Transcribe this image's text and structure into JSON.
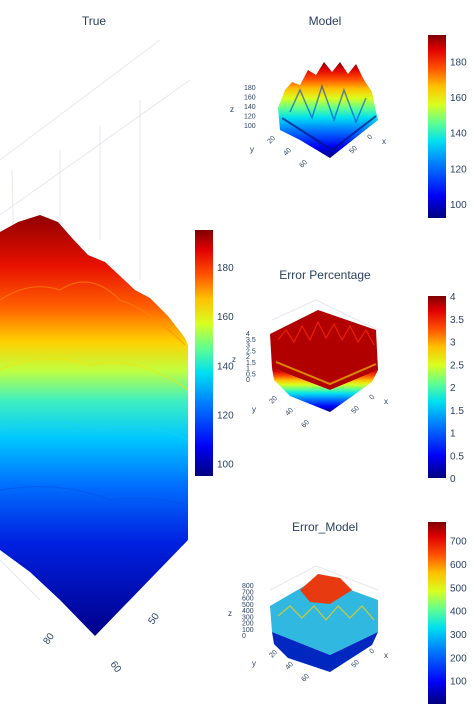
{
  "chart_data": [
    {
      "type": "surface3d",
      "title": "True",
      "axes": {
        "x": "",
        "y": "",
        "z": ""
      },
      "visible_ticks": {
        "x": [
          "60"
        ],
        "y": [
          "80",
          "50"
        ]
      },
      "colorbar": {
        "min": 95,
        "max": 195,
        "ticks": [
          100,
          120,
          140,
          160,
          180
        ]
      },
      "colorscale": "jet"
    },
    {
      "type": "surface3d",
      "title": "Model",
      "axes": {
        "x": "x",
        "y": "y",
        "z": "z"
      },
      "z_ticks": [
        100,
        120,
        140,
        160,
        180
      ],
      "y_ticks": [
        20,
        40,
        60
      ],
      "x_ticks": [
        0,
        50
      ],
      "colorbar": {
        "min": 92,
        "max": 195,
        "ticks": [
          100,
          120,
          140,
          160,
          180
        ]
      },
      "colorscale": "jet"
    },
    {
      "type": "surface3d",
      "title": "Error Percentage",
      "axes": {
        "x": "x",
        "y": "y",
        "z": "z"
      },
      "z_ticks": [
        0,
        0.5,
        1,
        1.5,
        2,
        2.5,
        3,
        3.5,
        4
      ],
      "y_ticks": [
        20,
        40,
        60
      ],
      "x_ticks": [
        0,
        50
      ],
      "colorbar": {
        "min": 0,
        "max": 4,
        "ticks": [
          0,
          0.5,
          1,
          1.5,
          2,
          2.5,
          3,
          3.5,
          4
        ]
      },
      "colorscale": "jet"
    },
    {
      "type": "surface3d",
      "title": "Error_Model",
      "axes": {
        "x": "x",
        "y": "y",
        "z": "z"
      },
      "z_ticks": [
        0,
        100,
        200,
        300,
        400,
        500,
        600,
        700,
        800
      ],
      "y_ticks": [
        20,
        40,
        60
      ],
      "x_ticks": [
        0,
        50
      ],
      "colorbar": {
        "min": 0,
        "max": 780,
        "ticks": [
          100,
          200,
          300,
          400,
          500,
          600,
          700
        ]
      },
      "colorscale": "jet"
    }
  ]
}
